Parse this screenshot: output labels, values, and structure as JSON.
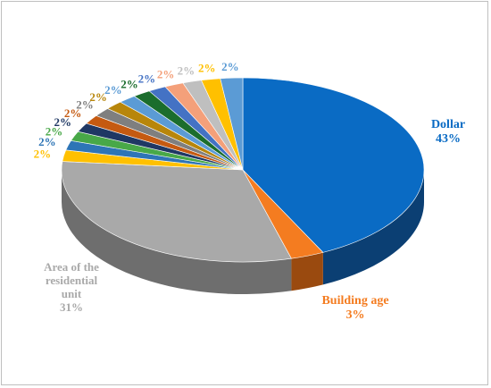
{
  "chart_data": {
    "type": "pie",
    "title": "",
    "slices": [
      {
        "label": "Dollar",
        "value": 43,
        "value_text": "43%",
        "color": "#0a6bc4",
        "side": "#0b3f73"
      },
      {
        "label": "Building age",
        "value": 3,
        "value_text": "3%",
        "color": "#f47c20",
        "side": "#9a4a0f"
      },
      {
        "label": "Area of the residential unit",
        "value": 31,
        "value_text": "31%",
        "color": "#a9a9a9",
        "side": "#6e6e6e"
      },
      {
        "label": "",
        "value": 2,
        "value_text": "2%",
        "color": "#ffc000",
        "side": "#a88000"
      },
      {
        "label": "",
        "value": 1.7,
        "value_text": "2%",
        "color": "#2e75b6",
        "side": "#1d4a73"
      },
      {
        "label": "",
        "value": 1.7,
        "value_text": "2%",
        "color": "#48a848",
        "side": "#2d6a2d"
      },
      {
        "label": "",
        "value": 1.6,
        "value_text": "2%",
        "color": "#1f3864",
        "side": "#131f38"
      },
      {
        "label": "",
        "value": 1.6,
        "value_text": "2%",
        "color": "#c55a11",
        "side": "#7a3709"
      },
      {
        "label": "",
        "value": 1.6,
        "value_text": "2%",
        "color": "#7f7f7f",
        "side": "#4d4d4d"
      },
      {
        "label": "",
        "value": 1.6,
        "value_text": "2%",
        "color": "#b8860b",
        "side": "#735407"
      },
      {
        "label": "",
        "value": 1.6,
        "value_text": "2%",
        "color": "#5b9bd5",
        "side": "#386187"
      },
      {
        "label": "",
        "value": 1.6,
        "value_text": "2%",
        "color": "#1b6d2d",
        "side": "#10421b"
      },
      {
        "label": "",
        "value": 1.6,
        "value_text": "2%",
        "color": "#4472c4",
        "side": "#2a4780"
      },
      {
        "label": "",
        "value": 1.7,
        "value_text": "2%",
        "color": "#f4a07a",
        "side": "#9c644b"
      },
      {
        "label": "",
        "value": 1.7,
        "value_text": "2%",
        "color": "#bfbfbf",
        "side": "#7f7f7f"
      },
      {
        "label": "",
        "value": 1.7,
        "value_text": "2%",
        "color": "#ffc000",
        "side": "#a88000"
      },
      {
        "label": "",
        "value": 2,
        "value_text": "2%",
        "color": "#5b9bd5",
        "side": "#386187"
      }
    ],
    "legend": "none"
  }
}
